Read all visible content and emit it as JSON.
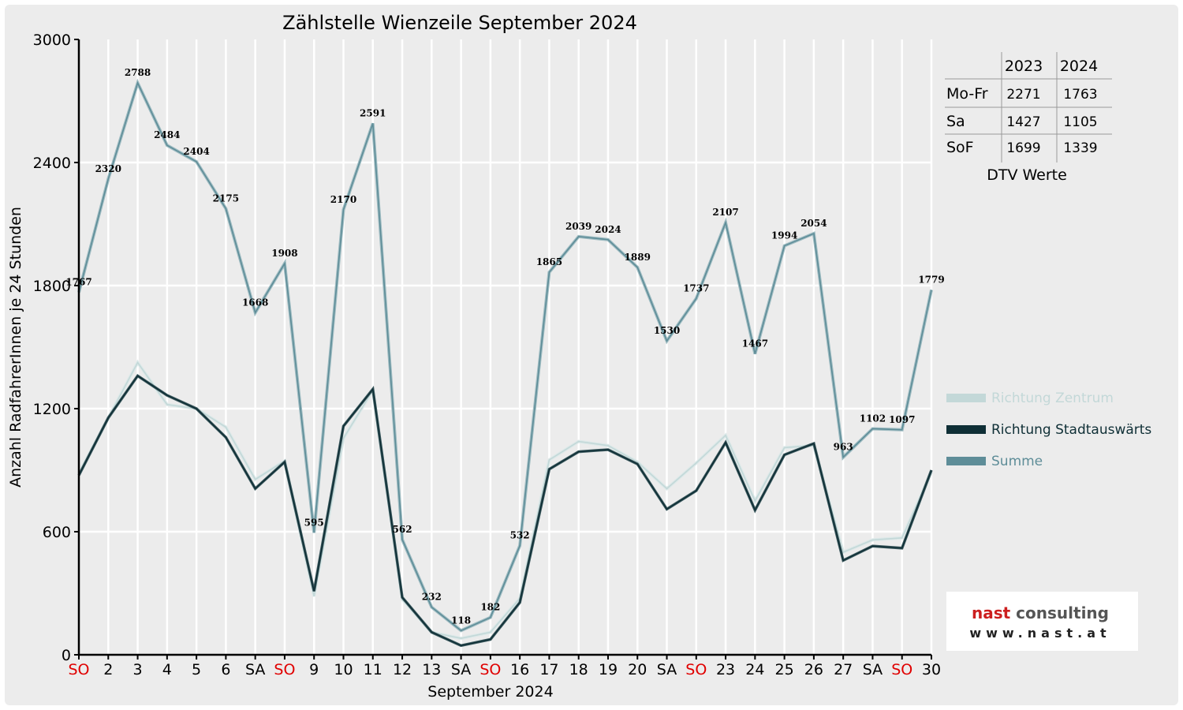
{
  "colors": {
    "zentrum": "#c3d8d8",
    "stadtauswaerts": "#0f2f36",
    "summe": "#5e8d98",
    "sunday": "#e00000",
    "background": "#ececec",
    "logo_accent": "#cc1f1f"
  },
  "chart_data": {
    "type": "line",
    "title": "Zählstelle Wienzeile September 2024",
    "xlabel": "September 2024",
    "ylabel": "Anzahl RadfahrerInnen je 24 Stunden",
    "ylim": [
      0,
      3000
    ],
    "yticks": [
      "0",
      "600",
      "1200",
      "1800",
      "2400",
      "3000"
    ],
    "grid": true,
    "legend_position": "right",
    "categories": [
      "SO",
      "2",
      "3",
      "4",
      "5",
      "6",
      "SA",
      "SO",
      "9",
      "10",
      "11",
      "12",
      "13",
      "SA",
      "SO",
      "16",
      "17",
      "18",
      "19",
      "20",
      "SA",
      "SO",
      "23",
      "24",
      "25",
      "26",
      "27",
      "SA",
      "SO",
      "30"
    ],
    "sunday_categories": [
      0,
      7,
      14,
      21,
      28
    ],
    "series": [
      {
        "name": "Richtung Zentrum",
        "key": "zentrum",
        "values": [
          885,
          1155,
          1425,
          1220,
          1200,
          1110,
          855,
          945,
          285,
          1055,
          1290,
          270,
          110,
          80,
          110,
          275,
          950,
          1040,
          1020,
          940,
          810,
          935,
          1070,
          750,
          1010,
          1020,
          500,
          560,
          570,
          890
        ]
      },
      {
        "name": "Richtung Stadtauswärts",
        "key": "stadtauswaerts",
        "values": [
          875,
          1155,
          1360,
          1265,
          1200,
          1060,
          810,
          940,
          310,
          1115,
          1295,
          280,
          110,
          45,
          75,
          255,
          905,
          990,
          1000,
          930,
          710,
          800,
          1035,
          705,
          975,
          1030,
          460,
          530,
          520,
          900
        ]
      },
      {
        "name": "Summe",
        "key": "summe",
        "values": [
          1767,
          2320,
          2788,
          2484,
          2404,
          2175,
          1668,
          1908,
          595,
          2170,
          2591,
          562,
          232,
          118,
          182,
          532,
          1865,
          2039,
          2024,
          1889,
          1530,
          1737,
          2107,
          1467,
          1994,
          2054,
          963,
          1102,
          1097,
          1779
        ]
      }
    ],
    "data_labels": [
      "1767",
      "2320",
      "2788",
      "2484",
      "2404",
      "2175",
      "1668",
      "1908",
      "595",
      "2170",
      "2591",
      "562",
      "232",
      "118",
      "182",
      "532",
      "1865",
      "2039",
      "2024",
      "1889",
      "1530",
      "1737",
      "2107",
      "1467",
      "1994",
      "2054",
      "963",
      "1102",
      "1097",
      "1779"
    ]
  },
  "dtv_table": {
    "caption": "DTV Werte",
    "columns": [
      "2023",
      "2024"
    ],
    "rows": [
      {
        "label": "Mo-Fr",
        "values": [
          "2271",
          "1763"
        ]
      },
      {
        "label": "Sa",
        "values": [
          "1427",
          "1105"
        ]
      },
      {
        "label": "SoF",
        "values": [
          "1699",
          "1339"
        ]
      }
    ]
  },
  "logo": {
    "line1": "nast consulting",
    "line2": "www.nast.at"
  }
}
